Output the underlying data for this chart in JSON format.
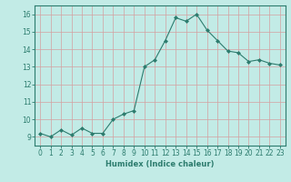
{
  "x": [
    0,
    1,
    2,
    3,
    4,
    5,
    6,
    7,
    8,
    9,
    10,
    11,
    12,
    13,
    14,
    15,
    16,
    17,
    18,
    19,
    20,
    21,
    22,
    23
  ],
  "y": [
    9.2,
    9.0,
    9.4,
    9.1,
    9.5,
    9.2,
    9.2,
    10.0,
    10.3,
    10.5,
    13.0,
    13.4,
    14.5,
    15.8,
    15.6,
    16.0,
    15.1,
    14.5,
    13.9,
    13.8,
    13.3,
    13.4,
    13.2,
    13.1
  ],
  "line_color": "#2d7c6e",
  "marker": "D",
  "marker_size": 2.0,
  "bg_color": "#c2ebe6",
  "grid_color": "#d8d8d8",
  "xlabel": "Humidex (Indice chaleur)",
  "ylim": [
    8.5,
    16.5
  ],
  "xlim": [
    -0.5,
    23.5
  ],
  "yticks": [
    9,
    10,
    11,
    12,
    13,
    14,
    15,
    16
  ],
  "xticks": [
    0,
    1,
    2,
    3,
    4,
    5,
    6,
    7,
    8,
    9,
    10,
    11,
    12,
    13,
    14,
    15,
    16,
    17,
    18,
    19,
    20,
    21,
    22,
    23
  ],
  "axis_fontsize": 5.5,
  "tick_fontsize": 5.5,
  "xlabel_fontsize": 6.0
}
